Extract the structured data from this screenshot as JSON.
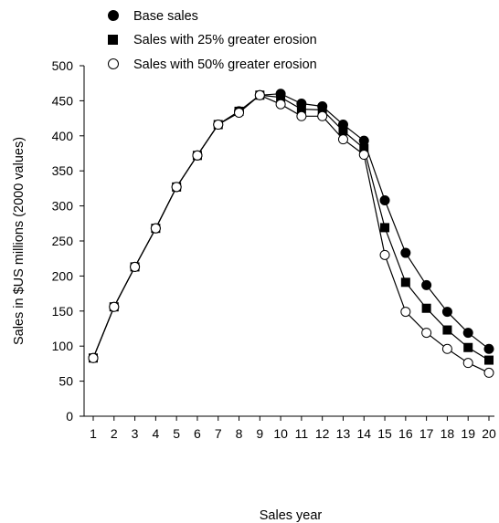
{
  "chart_data": {
    "type": "line",
    "title": "",
    "xlabel": "Sales year",
    "ylabel": "Sales in $US millions (2000 values)",
    "xlim": [
      1,
      20
    ],
    "ylim": [
      0,
      500
    ],
    "x": [
      1,
      2,
      3,
      4,
      5,
      6,
      7,
      8,
      9,
      10,
      11,
      12,
      13,
      14,
      15,
      16,
      17,
      18,
      19,
      20
    ],
    "x_ticks": [
      "1",
      "2",
      "3",
      "4",
      "5",
      "6",
      "7",
      "8",
      "9",
      "10",
      "11",
      "12",
      "13",
      "14",
      "15",
      "16",
      "17",
      "18",
      "19",
      "20"
    ],
    "y_ticks": [
      0,
      50,
      100,
      150,
      200,
      250,
      300,
      350,
      400,
      450,
      500
    ],
    "grid": false,
    "legend_position": "top-left",
    "series": [
      {
        "name": "Base sales",
        "marker": "filled-circle",
        "values": [
          83,
          156,
          213,
          268,
          327,
          372,
          416,
          435,
          458,
          460,
          446,
          442,
          416,
          393,
          308,
          233,
          187,
          149,
          119,
          96
        ]
      },
      {
        "name": "Sales with 25% greater erosion",
        "marker": "filled-square",
        "values": [
          83,
          156,
          213,
          268,
          327,
          372,
          416,
          435,
          458,
          455,
          438,
          437,
          407,
          382,
          269,
          191,
          154,
          123,
          98,
          80
        ]
      },
      {
        "name": "Sales with 50% greater erosion",
        "marker": "open-circle",
        "values": [
          83,
          156,
          213,
          268,
          327,
          372,
          416,
          433,
          458,
          445,
          428,
          428,
          395,
          373,
          230,
          149,
          119,
          96,
          76,
          62
        ]
      }
    ]
  }
}
